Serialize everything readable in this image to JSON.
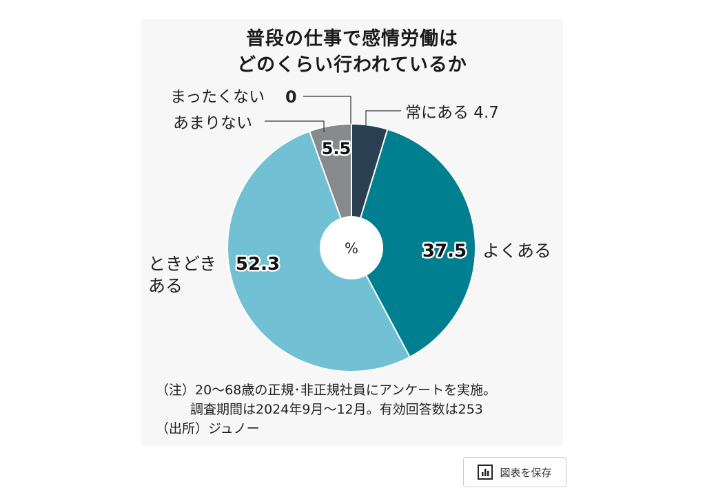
{
  "chart_data": {
    "type": "pie",
    "title": [
      "普段の仕事で感情労働は",
      "どのくらい行われているか"
    ],
    "unit": "%",
    "slices": [
      {
        "label": "常にある",
        "value": 4.7,
        "color": "#2b3f52"
      },
      {
        "label": "よくある",
        "value": 37.5,
        "color": "#007f91"
      },
      {
        "label": "ときどきある",
        "value": 52.3,
        "color": "#72c0d3"
      },
      {
        "label": "あまりない",
        "value": 5.5,
        "color": "#868a8c"
      },
      {
        "label": "まったくない",
        "value": 0,
        "color": "#cccccc"
      }
    ]
  },
  "labels": {
    "always": "常にある 4.7",
    "often": "よくある",
    "often_value": "37.5",
    "sometimes_line1": "ときどき",
    "sometimes_line2": "ある",
    "sometimes_value": "52.3",
    "rarely": "あまりない",
    "rarely_value": "5.5",
    "never": "まったくない",
    "never_value": "0"
  },
  "notes": {
    "line1": "（注）20～68歳の正規･非正規社員にアンケートを実施。",
    "line2": "調査期間は2024年9月～12月。有効回答数は253",
    "source": "（出所）ジュノー"
  },
  "save_button": {
    "label": "図表を保存",
    "icon": "chart-icon"
  }
}
